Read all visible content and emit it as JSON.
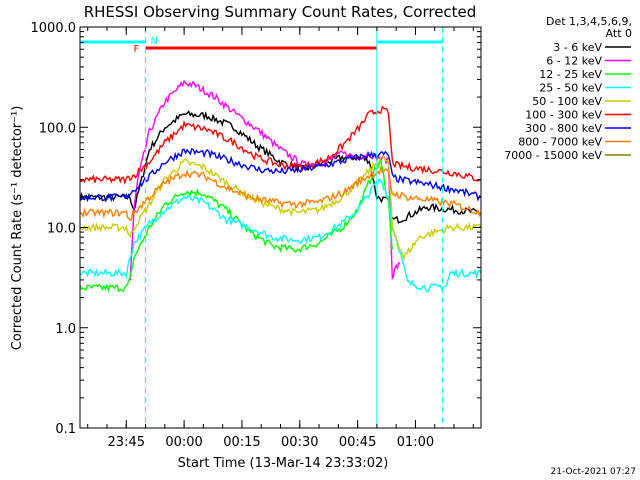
{
  "chart_data": {
    "type": "line",
    "title": "RHESSI Observing Summary Count Rates, Corrected",
    "xlabel": "Start Time (13-Mar-14 23:33:02)",
    "ylabel": "Corrected Count Rate (s⁻¹ detector⁻¹)",
    "x_unit": "minutes since 23:33:02",
    "xlim": [
      0,
      104
    ],
    "ylim": [
      0.1,
      1000
    ],
    "yscale": "log",
    "x_ticks": [
      {
        "value": 12,
        "label": "23:45"
      },
      {
        "value": 27,
        "label": "00:00"
      },
      {
        "value": 42,
        "label": "00:15"
      },
      {
        "value": 57,
        "label": "00:30"
      },
      {
        "value": 72,
        "label": "00:45"
      },
      {
        "value": 87,
        "label": "01:00"
      }
    ],
    "y_ticks": [
      {
        "value": 0.1,
        "label": "0.1"
      },
      {
        "value": 1,
        "label": "1.0"
      },
      {
        "value": 10,
        "label": "10.0"
      },
      {
        "value": 100,
        "label": "100.0"
      },
      {
        "value": 1000,
        "label": "1000.0"
      }
    ],
    "legend_header": [
      "Det 1,3,4,5,6,9,",
      "Att 0"
    ],
    "series": [
      {
        "name": "3 - 6 keV",
        "color": "#000000",
        "x": [
          0,
          13,
          14,
          18,
          22,
          27,
          33,
          40,
          46,
          52,
          58,
          64,
          68,
          72,
          75,
          77,
          79,
          80,
          81,
          83,
          85,
          90,
          97,
          104
        ],
        "values": [
          20,
          20,
          15,
          60,
          100,
          135,
          130,
          100,
          65,
          45,
          38,
          45,
          50,
          50,
          47,
          20,
          19,
          18,
          12,
          12,
          13,
          16,
          15,
          14
        ]
      },
      {
        "name": "6 - 12 keV",
        "color": "#ff00ff",
        "x": [
          13,
          14,
          15,
          18,
          22,
          27,
          30,
          35,
          40,
          46,
          52,
          58,
          64,
          68,
          72,
          75,
          77,
          79,
          80,
          81,
          82,
          83
        ],
        "values": [
          3,
          15,
          30,
          90,
          180,
          280,
          260,
          200,
          140,
          95,
          60,
          42,
          45,
          55,
          50,
          55,
          50,
          48,
          45,
          3.3,
          4,
          4.3
        ]
      },
      {
        "name": "12 - 25 keV",
        "color": "#00ff00",
        "x": [
          0,
          12,
          13,
          14,
          18,
          22,
          27,
          32,
          38,
          44,
          50,
          56,
          62,
          68,
          72,
          76,
          78,
          80,
          81
        ],
        "values": [
          2.5,
          2.5,
          3,
          5,
          10,
          17,
          23,
          22,
          15,
          9,
          6.5,
          6,
          7,
          10,
          15,
          35,
          45,
          18,
          6
        ]
      },
      {
        "name": "25 - 50 keV",
        "color": "#00ffff",
        "x": [
          0,
          12,
          13,
          14,
          18,
          22,
          27,
          32,
          38,
          44,
          50,
          56,
          62,
          68,
          72,
          76,
          78,
          80,
          81,
          82,
          85,
          90,
          95,
          96,
          104
        ],
        "values": [
          3.5,
          3.5,
          5,
          7,
          11,
          15,
          20,
          18,
          12,
          10,
          8,
          7.5,
          8,
          11,
          15,
          25,
          30,
          20,
          10,
          8,
          2.8,
          2.5,
          2.6,
          3.5,
          3.5
        ]
      },
      {
        "name": "50 - 100 keV",
        "color": "#cccc00",
        "x": [
          0,
          12,
          13,
          14,
          18,
          22,
          27,
          32,
          38,
          44,
          50,
          56,
          62,
          68,
          72,
          76,
          78,
          80,
          81,
          84,
          88,
          92,
          96,
          104
        ],
        "values": [
          10,
          10,
          8,
          10,
          17,
          30,
          45,
          40,
          28,
          20,
          16,
          14,
          15,
          20,
          28,
          40,
          50,
          45,
          10,
          5,
          8,
          9,
          10,
          10
        ]
      },
      {
        "name": "100 - 300 keV",
        "color": "#ff0000",
        "x": [
          0,
          12,
          13,
          14,
          18,
          22,
          27,
          33,
          40,
          46,
          52,
          58,
          64,
          68,
          72,
          75,
          78,
          80,
          81,
          82,
          85,
          90,
          97,
          104
        ],
        "values": [
          30,
          30,
          32,
          33,
          45,
          70,
          105,
          95,
          70,
          50,
          42,
          40,
          48,
          65,
          95,
          135,
          150,
          140,
          45,
          42,
          40,
          38,
          35,
          30
        ]
      },
      {
        "name": "300 - 800 keV",
        "color": "#0000ff",
        "x": [
          0,
          12,
          13,
          14,
          18,
          22,
          27,
          33,
          40,
          46,
          52,
          58,
          64,
          70,
          74,
          78,
          80,
          81,
          83,
          90,
          97,
          104
        ],
        "values": [
          20,
          20,
          22,
          24,
          32,
          45,
          58,
          55,
          45,
          38,
          36,
          38,
          42,
          48,
          52,
          54,
          53,
          32,
          30,
          27,
          24,
          20
        ]
      },
      {
        "name": "800 - 7000 keV",
        "color": "#ff7f00",
        "x": [
          0,
          12,
          13,
          14,
          18,
          22,
          27,
          32,
          38,
          44,
          50,
          56,
          62,
          68,
          72,
          75,
          78,
          80,
          81,
          85,
          90,
          97,
          104
        ],
        "values": [
          14,
          14,
          12,
          14,
          20,
          28,
          35,
          33,
          25,
          20,
          18,
          17,
          18,
          22,
          28,
          33,
          37,
          35,
          22,
          20,
          19,
          17,
          14
        ]
      },
      {
        "name": "7000 - 15000 keV",
        "color": "#808000",
        "x": [],
        "values": []
      }
    ],
    "marker_lines": [
      {
        "x": 0
      },
      {
        "x": 17
      },
      {
        "x": 77
      },
      {
        "x": 94
      }
    ],
    "state_bars": [
      {
        "label": "F",
        "color": "#ff0000",
        "x_start": 17,
        "x_end": 77
      },
      {
        "label": "N",
        "color": "#00ffff",
        "segments": [
          [
            0,
            17
          ],
          [
            77,
            94
          ]
        ]
      }
    ],
    "footer_date": "21-Oct-2021 07:27"
  }
}
